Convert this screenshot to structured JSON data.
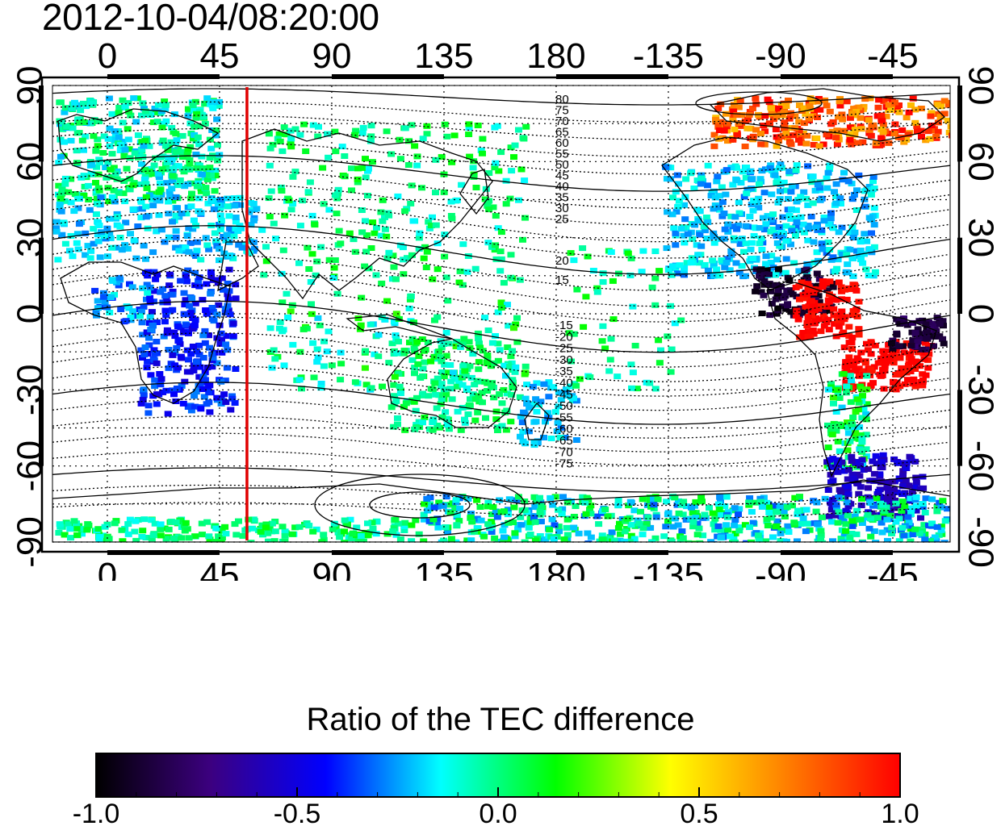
{
  "timestamp": "2012-10-04/08:20:00",
  "map": {
    "lon_ticks": [
      "0",
      "45",
      "90",
      "135",
      "180",
      "-135",
      "-90",
      "-45"
    ],
    "lat_ticks": [
      "90",
      "60",
      "30",
      "0",
      "-30",
      "-60",
      "-90"
    ],
    "contour_labels_north": [
      "80",
      "75",
      "70",
      "65",
      "60",
      "55",
      "50",
      "45",
      "40",
      "35",
      "30",
      "25",
      "20",
      "15"
    ],
    "contour_labels_south": [
      "-15",
      "-20",
      "-25",
      "-30",
      "-35",
      "-40",
      "-45",
      "-50",
      "-55",
      "-60",
      "-65",
      "-70",
      "-75"
    ],
    "marker_longitude": 56,
    "marker_color": "#e00000"
  },
  "colorbar": {
    "title": "Ratio of the TEC difference",
    "tick_labels": [
      "-1.0",
      "-0.5",
      "0.0",
      "0.5",
      "1.0"
    ],
    "range": [
      -1.0,
      1.0
    ],
    "colors": [
      "#000000",
      "#3c0080",
      "#0000ff",
      "#00ffff",
      "#00ff00",
      "#ffff00",
      "#ff8000",
      "#ff0000"
    ]
  }
}
